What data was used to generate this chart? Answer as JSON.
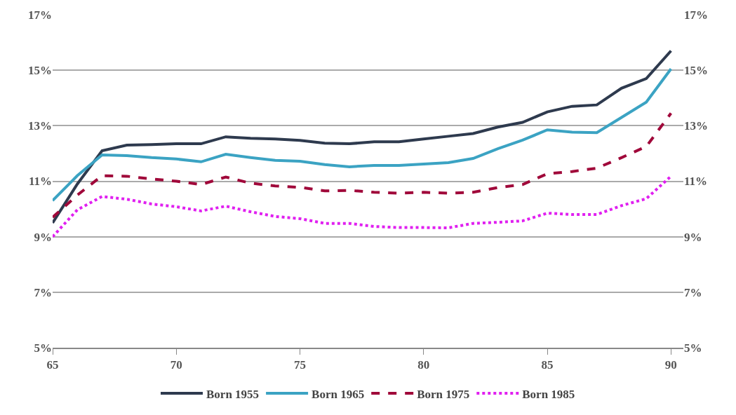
{
  "chart_data": {
    "type": "line",
    "x": [
      65,
      66,
      67,
      68,
      69,
      70,
      71,
      72,
      73,
      74,
      75,
      76,
      77,
      78,
      79,
      80,
      81,
      82,
      83,
      84,
      85,
      86,
      87,
      88,
      89,
      90
    ],
    "series": [
      {
        "name": "Born 1955",
        "color": "#2e3a4e",
        "line_style": "solid",
        "values": [
          9.5,
          10.9,
          12.1,
          12.3,
          12.32,
          12.35,
          12.35,
          12.6,
          12.55,
          12.52,
          12.47,
          12.37,
          12.35,
          12.42,
          12.42,
          12.52,
          12.62,
          12.72,
          12.95,
          13.12,
          13.5,
          13.7,
          13.75,
          14.35,
          14.7,
          15.7
        ]
      },
      {
        "name": "Born 1965",
        "color": "#3ba3c3",
        "line_style": "solid",
        "values": [
          10.3,
          11.2,
          11.95,
          11.92,
          11.85,
          11.8,
          11.7,
          11.97,
          11.85,
          11.75,
          11.72,
          11.6,
          11.52,
          11.57,
          11.57,
          11.62,
          11.67,
          11.82,
          12.17,
          12.48,
          12.85,
          12.77,
          12.75,
          13.3,
          13.85,
          15.05
        ]
      },
      {
        "name": "Born 1975",
        "color": "#a0083a",
        "line_style": "dashed",
        "values": [
          9.7,
          10.5,
          11.2,
          11.18,
          11.08,
          11.0,
          10.88,
          11.15,
          10.93,
          10.83,
          10.78,
          10.65,
          10.67,
          10.6,
          10.57,
          10.6,
          10.57,
          10.6,
          10.77,
          10.88,
          11.27,
          11.35,
          11.47,
          11.85,
          12.25,
          13.45
        ]
      },
      {
        "name": "Born 1985",
        "color": "#e020f0",
        "line_style": "dotted",
        "values": [
          9.0,
          9.97,
          10.45,
          10.35,
          10.18,
          10.08,
          9.93,
          10.1,
          9.9,
          9.73,
          9.65,
          9.48,
          9.48,
          9.37,
          9.33,
          9.33,
          9.32,
          9.48,
          9.52,
          9.57,
          9.85,
          9.8,
          9.8,
          10.12,
          10.37,
          11.18
        ]
      }
    ],
    "xlim": [
      65,
      90.5
    ],
    "xticks": [
      65,
      70,
      75,
      80,
      85,
      90
    ],
    "ylim": [
      5,
      17
    ],
    "yticks": [
      {
        "value": 5,
        "label": "5%"
      },
      {
        "value": 7,
        "label": "7%"
      },
      {
        "value": 9,
        "label": "9%"
      },
      {
        "value": 11,
        "label": "11%"
      },
      {
        "value": 13,
        "label": "13%"
      },
      {
        "value": 15,
        "label": "15%"
      },
      {
        "value": 17,
        "label": "17%"
      }
    ],
    "y2lim": [
      5,
      17
    ],
    "y2ticks": [
      {
        "value": 5,
        "label": "5%"
      },
      {
        "value": 7,
        "label": "7%"
      },
      {
        "value": 9,
        "label": "9%"
      },
      {
        "value": 11,
        "label": "11%"
      },
      {
        "value": 13,
        "label": "13%"
      },
      {
        "value": 15,
        "label": "15%"
      },
      {
        "value": 17,
        "label": "17%"
      }
    ],
    "grid": "y",
    "legend": "bottom",
    "marker": "none"
  }
}
